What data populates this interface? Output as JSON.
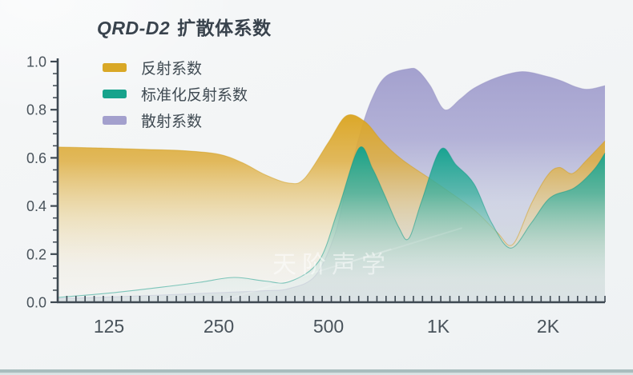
{
  "title": {
    "model": "QRD-D2",
    "suffix": "扩散体系数"
  },
  "watermark": "天阶声学",
  "colors": {
    "background": "#f2f4f5",
    "axis": "#3e4952",
    "title_text": "#39434d",
    "label_text": "#49535b",
    "bottom_bar": "#a9bdbe",
    "reflection": "#d9a826",
    "normalized_reflection": "#17a38c",
    "scattering": "#a3a0cd"
  },
  "chart_data": {
    "type": "area",
    "title": "QRD-D2 扩散体系数",
    "x_axis": {
      "scale": "log",
      "unit": "Hz",
      "range_hz": [
        90,
        2880
      ],
      "tick_labels": [
        "125",
        "250",
        "500",
        "1K",
        "2K"
      ],
      "tick_freqs": [
        125,
        250,
        500,
        1000,
        2000
      ],
      "minor_ticks_per_octave": 12
    },
    "y_axis": {
      "range": [
        0,
        1
      ],
      "major_step": 0.2,
      "minor_step": 0.05,
      "labels": [
        "0.0",
        "0.2",
        "0.4",
        "0.6",
        "0.8",
        "1.0"
      ]
    },
    "legend_position": "top-left",
    "grid": false,
    "series": [
      {
        "name": "反射系数",
        "color": "#d9a826",
        "points": [
          [
            90,
            0.645
          ],
          [
            110,
            0.642
          ],
          [
            125,
            0.64
          ],
          [
            160,
            0.635
          ],
          [
            200,
            0.63
          ],
          [
            250,
            0.615
          ],
          [
            290,
            0.58
          ],
          [
            335,
            0.53
          ],
          [
            390,
            0.495
          ],
          [
            430,
            0.515
          ],
          [
            500,
            0.665
          ],
          [
            560,
            0.775
          ],
          [
            630,
            0.75
          ],
          [
            700,
            0.67
          ],
          [
            800,
            0.59
          ],
          [
            1000,
            0.49
          ],
          [
            1250,
            0.385
          ],
          [
            1450,
            0.29
          ],
          [
            1600,
            0.24
          ],
          [
            1800,
            0.41
          ],
          [
            2000,
            0.53
          ],
          [
            2150,
            0.56
          ],
          [
            2330,
            0.535
          ],
          [
            2550,
            0.59
          ],
          [
            2880,
            0.67
          ]
        ]
      },
      {
        "name": "标准化反射系数",
        "color": "#17a38c",
        "points": [
          [
            90,
            0.02
          ],
          [
            125,
            0.038
          ],
          [
            173,
            0.062
          ],
          [
            222,
            0.083
          ],
          [
            275,
            0.103
          ],
          [
            335,
            0.088
          ],
          [
            390,
            0.085
          ],
          [
            470,
            0.17
          ],
          [
            530,
            0.38
          ],
          [
            606,
            0.64
          ],
          [
            660,
            0.555
          ],
          [
            710,
            0.45
          ],
          [
            780,
            0.31
          ],
          [
            830,
            0.265
          ],
          [
            900,
            0.42
          ],
          [
            1015,
            0.635
          ],
          [
            1120,
            0.57
          ],
          [
            1255,
            0.49
          ],
          [
            1400,
            0.33
          ],
          [
            1580,
            0.225
          ],
          [
            1800,
            0.33
          ],
          [
            2030,
            0.435
          ],
          [
            2360,
            0.475
          ],
          [
            2670,
            0.55
          ],
          [
            2880,
            0.62
          ]
        ]
      },
      {
        "name": "散射系数",
        "color": "#a3a0cd",
        "points": [
          [
            90,
            0.015
          ],
          [
            125,
            0.022
          ],
          [
            173,
            0.03
          ],
          [
            250,
            0.04
          ],
          [
            335,
            0.048
          ],
          [
            390,
            0.057
          ],
          [
            460,
            0.11
          ],
          [
            520,
            0.28
          ],
          [
            560,
            0.48
          ],
          [
            610,
            0.7
          ],
          [
            660,
            0.85
          ],
          [
            720,
            0.94
          ],
          [
            830,
            0.97
          ],
          [
            880,
            0.962
          ],
          [
            950,
            0.9
          ],
          [
            1040,
            0.8
          ],
          [
            1150,
            0.845
          ],
          [
            1255,
            0.89
          ],
          [
            1455,
            0.935
          ],
          [
            1700,
            0.958
          ],
          [
            1970,
            0.94
          ],
          [
            2175,
            0.92
          ],
          [
            2380,
            0.895
          ],
          [
            2580,
            0.885
          ],
          [
            2880,
            0.9
          ]
        ]
      }
    ]
  }
}
